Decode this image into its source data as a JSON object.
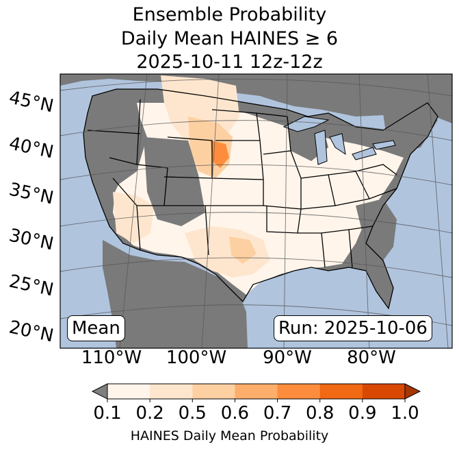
{
  "title": {
    "line1": "Ensemble Probability",
    "line2": "Daily Mean HAINES ≥ 6",
    "line3": "2025-10-11 12z-12z"
  },
  "labels": {
    "mean": "Mean",
    "run": "Run: 2025-10-06"
  },
  "axes": {
    "lon_labels": [
      "110°W",
      "100°W",
      "90°W",
      "80°W"
    ],
    "lat_labels": [
      "45°N",
      "40°N",
      "35°N",
      "30°N",
      "25°N",
      "20°N"
    ]
  },
  "colorbar": {
    "ticks": [
      "0.1",
      "0.2",
      "0.5",
      "0.6",
      "0.7",
      "0.8",
      "0.9",
      "1.0"
    ],
    "colors": [
      "#fff5eb",
      "#fee6ce",
      "#fdd0a2",
      "#fdae6b",
      "#fd8d3c",
      "#f16913",
      "#d94801",
      "#a63603"
    ],
    "under_color": "#7f7f7f",
    "label": "HAINES Daily Mean Probability"
  },
  "map_colors": {
    "ocean": "#b0c4de",
    "no_data_land": "#7a7a7a",
    "border": "#000000",
    "grid": "#555555"
  }
}
